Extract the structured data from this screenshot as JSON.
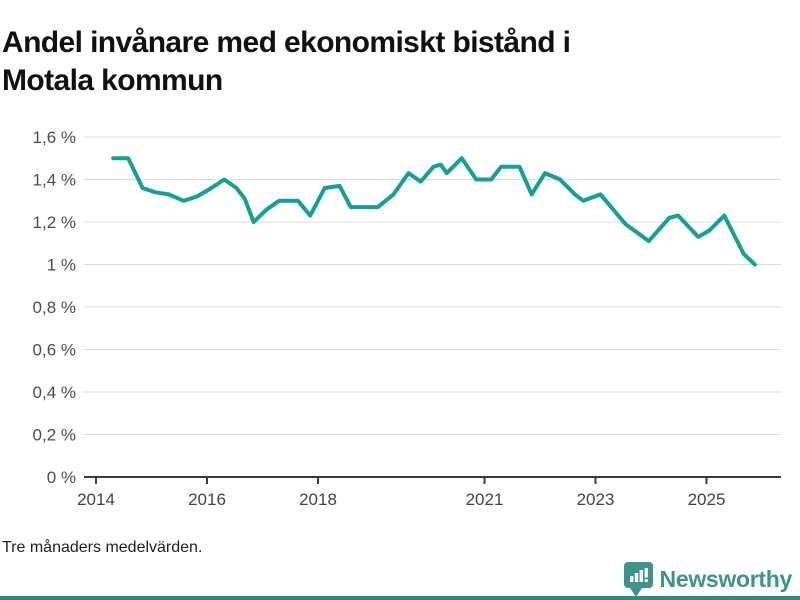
{
  "title": {
    "full": "Andel invånare med ekonomiskt bistånd i Motala kommun",
    "line1": "Andel invånare med ekonomiskt bistånd i",
    "line2": "Motala kommun"
  },
  "footnote": "Tre månaders medelvärden.",
  "logo": {
    "brand": "Newsworthy",
    "icon": "newsworthy-speech-bubble-bars-icon"
  },
  "colors": {
    "line": "#14a096",
    "grid": "#dcdcdc",
    "axis": "#3a3a3a",
    "y_tick_text": "#4d4d4d",
    "x_tick_text": "#444444",
    "title_text": "#111111",
    "brand_teal": "#3d948b",
    "bottom_bar": "#2e8a80",
    "background": "#ffffff"
  },
  "chart_data": {
    "type": "line",
    "title": "Andel invånare med ekonomiskt bistånd i Motala kommun",
    "xlabel": "",
    "ylabel": "",
    "unit": "%",
    "ylim": [
      0,
      1.6
    ],
    "xlim": [
      2013.8,
      2026.4
    ],
    "grid": "horizontal",
    "legend": "none",
    "y_ticks": [
      {
        "value": 1.6,
        "label": "1,6 %"
      },
      {
        "value": 1.4,
        "label": "1,4 %"
      },
      {
        "value": 1.2,
        "label": "1,2 %"
      },
      {
        "value": 1.0,
        "label": "1 %"
      },
      {
        "value": 0.8,
        "label": "0,8 %"
      },
      {
        "value": 0.6,
        "label": "0,6 %"
      },
      {
        "value": 0.4,
        "label": "0,4 %"
      },
      {
        "value": 0.2,
        "label": "0,2 %"
      },
      {
        "value": 0.0,
        "label": "0 %"
      }
    ],
    "x_ticks": [
      {
        "value": 2014,
        "label": "2014"
      },
      {
        "value": 2016,
        "label": "2016"
      },
      {
        "value": 2018,
        "label": "2018"
      },
      {
        "value": 2021,
        "label": "2021"
      },
      {
        "value": 2023,
        "label": "2023"
      },
      {
        "value": 2025,
        "label": "2025"
      }
    ],
    "series": [
      {
        "name": "Andel invånare med ekonomiskt bistånd, Motala kommun",
        "unit": "%",
        "points": [
          [
            2014.31,
            1.5
          ],
          [
            2014.58,
            1.5
          ],
          [
            2014.84,
            1.36
          ],
          [
            2015.07,
            1.34
          ],
          [
            2015.31,
            1.33
          ],
          [
            2015.58,
            1.3
          ],
          [
            2015.82,
            1.32
          ],
          [
            2016.08,
            1.36
          ],
          [
            2016.31,
            1.4
          ],
          [
            2016.53,
            1.36
          ],
          [
            2016.68,
            1.31
          ],
          [
            2016.84,
            1.2
          ],
          [
            2017.08,
            1.26
          ],
          [
            2017.3,
            1.3
          ],
          [
            2017.64,
            1.3
          ],
          [
            2017.86,
            1.23
          ],
          [
            2018.12,
            1.36
          ],
          [
            2018.39,
            1.37
          ],
          [
            2018.59,
            1.27
          ],
          [
            2019.08,
            1.27
          ],
          [
            2019.36,
            1.33
          ],
          [
            2019.63,
            1.43
          ],
          [
            2019.85,
            1.39
          ],
          [
            2020.08,
            1.46
          ],
          [
            2020.21,
            1.47
          ],
          [
            2020.32,
            1.43
          ],
          [
            2020.59,
            1.5
          ],
          [
            2020.85,
            1.4
          ],
          [
            2021.12,
            1.4
          ],
          [
            2021.3,
            1.46
          ],
          [
            2021.63,
            1.46
          ],
          [
            2021.85,
            1.33
          ],
          [
            2022.09,
            1.43
          ],
          [
            2022.36,
            1.4
          ],
          [
            2022.63,
            1.33
          ],
          [
            2022.78,
            1.3
          ],
          [
            2023.09,
            1.33
          ],
          [
            2023.54,
            1.19
          ],
          [
            2023.96,
            1.11
          ],
          [
            2024.33,
            1.22
          ],
          [
            2024.49,
            1.23
          ],
          [
            2024.85,
            1.13
          ],
          [
            2025.05,
            1.16
          ],
          [
            2025.32,
            1.23
          ],
          [
            2025.67,
            1.05
          ],
          [
            2025.87,
            1.0
          ]
        ]
      }
    ]
  }
}
